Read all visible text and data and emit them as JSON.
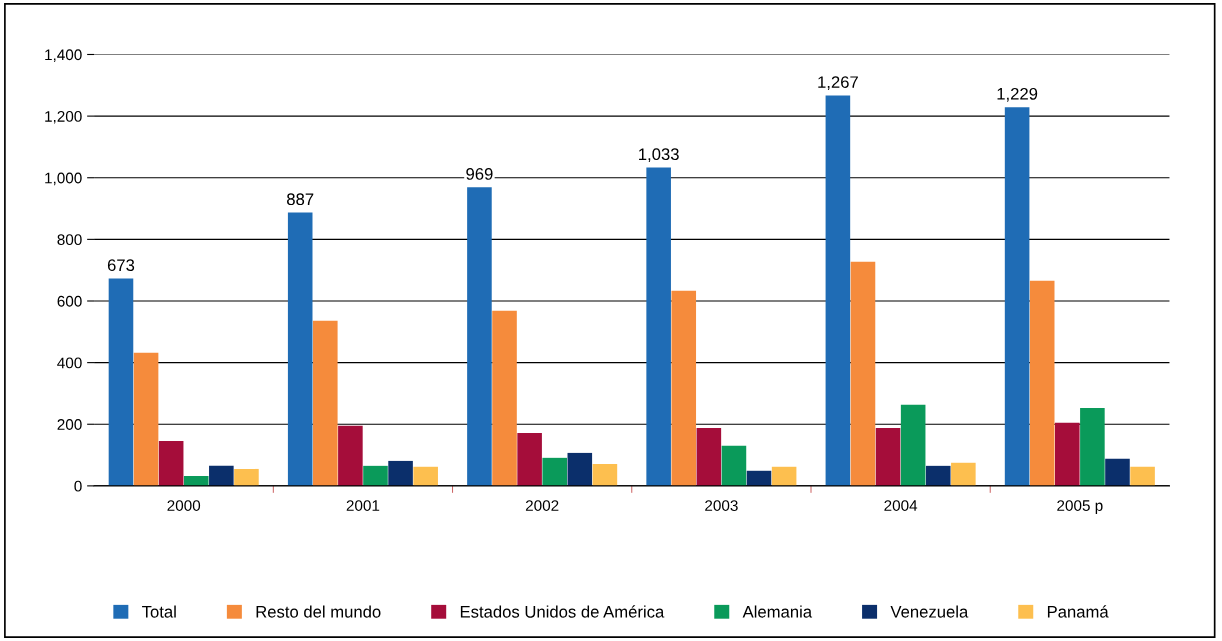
{
  "chart_data": {
    "type": "bar",
    "categories": [
      "2000",
      "2001",
      "2002",
      "2003",
      "2004",
      "2005 p"
    ],
    "series": [
      {
        "name": "Total",
        "color": "#1f6cb5",
        "values": [
          673,
          887,
          969,
          1033,
          1267,
          1229
        ],
        "value_labels": [
          "673",
          "887",
          "969",
          "1,033",
          "1,267",
          "1,229"
        ]
      },
      {
        "name": "Resto del mundo",
        "color": "#f58b3c",
        "values": [
          432,
          536,
          568,
          633,
          727,
          666
        ]
      },
      {
        "name": "Estados Unidos de América",
        "color": "#a50d3a",
        "values": [
          146,
          195,
          172,
          188,
          188,
          205
        ]
      },
      {
        "name": "Alemania",
        "color": "#0a9a5a",
        "values": [
          32,
          65,
          91,
          130,
          263,
          253
        ]
      },
      {
        "name": "Venezuela",
        "color": "#0b2f6b",
        "values": [
          65,
          81,
          107,
          49,
          65,
          88
        ]
      },
      {
        "name": "Panamá",
        "color": "#fdbf4f",
        "values": [
          55,
          62,
          71,
          62,
          75,
          62
        ]
      }
    ],
    "ylim": [
      0,
      1400
    ],
    "yticks": [
      {
        "value": 0,
        "label": "0"
      },
      {
        "value": 200,
        "label": "200"
      },
      {
        "value": 400,
        "label": "400"
      },
      {
        "value": 600,
        "label": "600"
      },
      {
        "value": 800,
        "label": "800"
      },
      {
        "value": 1000,
        "label": "1,000"
      },
      {
        "value": 1200,
        "label": "1,200"
      },
      {
        "value": 1400,
        "label": "1,400"
      }
    ],
    "grid": "y",
    "legend": "bottom"
  }
}
